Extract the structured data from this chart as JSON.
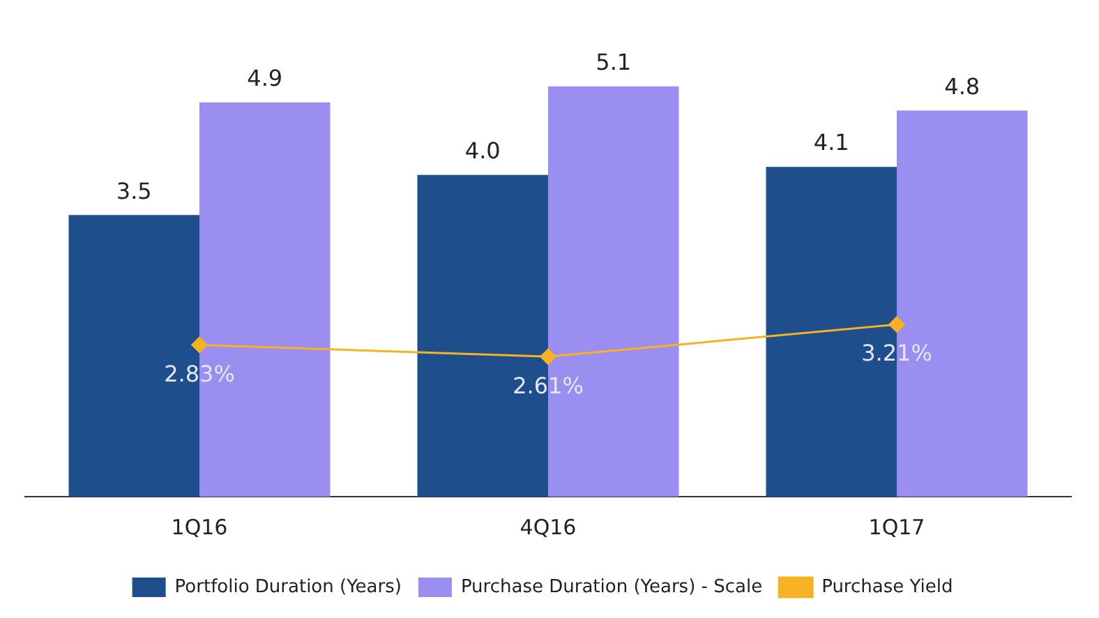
{
  "chart_data": {
    "type": "bar",
    "categories": [
      "1Q16",
      "4Q16",
      "1Q17"
    ],
    "series": [
      {
        "name": "Portfolio Duration (Years)",
        "color": "#1f4e8c",
        "values": [
          3.5,
          4.0,
          4.1
        ],
        "value_labels": [
          "3.5",
          "4.0",
          "4.1"
        ]
      },
      {
        "name": "Purchase Duration (Years) - Scale",
        "color": "#9a8ff0",
        "values": [
          4.9,
          5.1,
          4.8
        ],
        "value_labels": [
          "4.9",
          "5.1",
          "4.8"
        ]
      },
      {
        "name": "Purchase Yield",
        "type": "line",
        "axis": "y2",
        "color": "#f5b324",
        "values": [
          2.83,
          2.61,
          3.21
        ],
        "value_labels": [
          "2.83%",
          "2.61%",
          "3.21%"
        ]
      }
    ],
    "tick_labels": "x",
    "grid": false,
    "legend": "bottom",
    "marker": "diamond"
  }
}
